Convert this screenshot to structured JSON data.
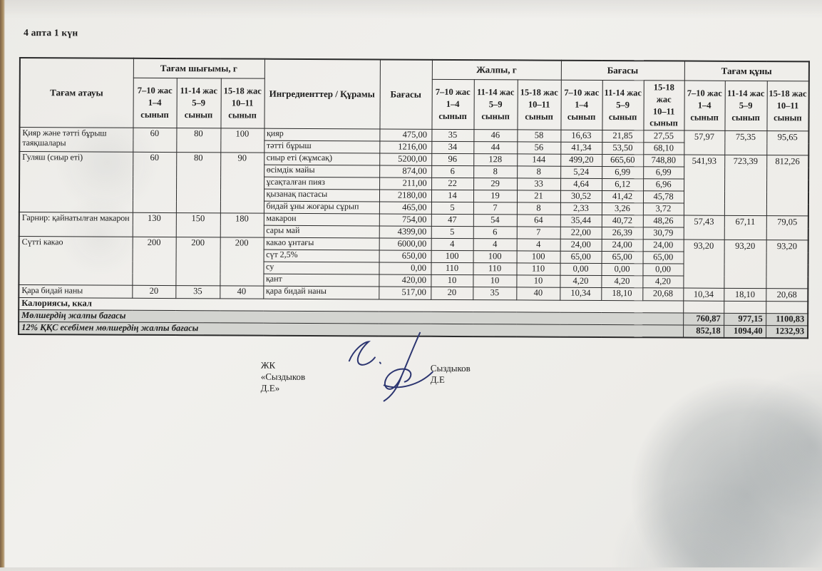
{
  "page": {
    "title": "4 апта 1 күн"
  },
  "colors": {
    "text_ink": "#1c1c1c",
    "table_line": "#2a2a2a",
    "total_row_bg": "#d3d4d0",
    "signature_ink": "#2c3570",
    "paper": "#efeeeb"
  },
  "table": {
    "headers": {
      "dish": "Тағам атауы",
      "output_group": "Тағам шығымы, г",
      "ingredients": "Ингредиенттер / Құрамы",
      "price": "Бағасы",
      "total_group": "Жалпы, г",
      "price_group": "Бағасы",
      "cost_group": "Тағам құны",
      "age_cols": [
        "7–10 жас\n1–4\nсынып",
        "11-14 жас\n5–9\nсынып",
        "15-18 жас\n10–11\nсынып"
      ]
    },
    "groups": [
      {
        "dish": "Қияр және тәтті бұрыш таяқшалары",
        "output": [
          "60",
          "80",
          "100"
        ],
        "cost": [
          "57,97",
          "75,35",
          "95,65"
        ],
        "ingredients": [
          {
            "name": "қияр",
            "price": "475,00",
            "total": [
              "35",
              "46",
              "58"
            ],
            "prices": [
              "16,63",
              "21,85",
              "27,55"
            ]
          },
          {
            "name": "тәтті бұрыш",
            "price": "1216,00",
            "total": [
              "34",
              "44",
              "56"
            ],
            "prices": [
              "41,34",
              "53,50",
              "68,10"
            ]
          }
        ]
      },
      {
        "dish": "Гуляш (сиыр еті)",
        "output": [
          "60",
          "80",
          "90"
        ],
        "cost": [
          "541,93",
          "723,39",
          "812,26"
        ],
        "ingredients": [
          {
            "name": "сиыр еті (жұмсақ)",
            "price": "5200,00",
            "total": [
              "96",
              "128",
              "144"
            ],
            "prices": [
              "499,20",
              "665,60",
              "748,80"
            ]
          },
          {
            "name": "өсімдік майы",
            "price": "874,00",
            "total": [
              "6",
              "8",
              "8"
            ],
            "prices": [
              "5,24",
              "6,99",
              "6,99"
            ]
          },
          {
            "name": "ұсақталған пияз",
            "price": "211,00",
            "total": [
              "22",
              "29",
              "33"
            ],
            "prices": [
              "4,64",
              "6,12",
              "6,96"
            ]
          },
          {
            "name": "қызанақ пастасы",
            "price": "2180,00",
            "total": [
              "14",
              "19",
              "21"
            ],
            "prices": [
              "30,52",
              "41,42",
              "45,78"
            ]
          },
          {
            "name": "бидай ұны жоғары сұрып",
            "price": "465,00",
            "total": [
              "5",
              "7",
              "8"
            ],
            "prices": [
              "2,33",
              "3,26",
              "3,72"
            ]
          }
        ]
      },
      {
        "dish": "Гарнир: қайнатылған макарон",
        "output": [
          "130",
          "150",
          "180"
        ],
        "cost": [
          "57,43",
          "67,11",
          "79,05"
        ],
        "ingredients": [
          {
            "name": "макарон",
            "price": "754,00",
            "total": [
              "47",
              "54",
              "64"
            ],
            "prices": [
              "35,44",
              "40,72",
              "48,26"
            ]
          },
          {
            "name": "сары май",
            "price": "4399,00",
            "total": [
              "5",
              "6",
              "7"
            ],
            "prices": [
              "22,00",
              "26,39",
              "30,79"
            ]
          }
        ]
      },
      {
        "dish": "Сүтті какао",
        "output": [
          "200",
          "200",
          "200"
        ],
        "cost": [
          "93,20",
          "93,20",
          "93,20"
        ],
        "ingredients": [
          {
            "name": "какао ұнтағы",
            "price": "6000,00",
            "total": [
              "4",
              "4",
              "4"
            ],
            "prices": [
              "24,00",
              "24,00",
              "24,00"
            ]
          },
          {
            "name": "сүт 2,5%",
            "price": "650,00",
            "total": [
              "100",
              "100",
              "100"
            ],
            "prices": [
              "65,00",
              "65,00",
              "65,00"
            ]
          },
          {
            "name": "су",
            "price": "0,00",
            "total": [
              "110",
              "110",
              "110"
            ],
            "prices": [
              "0,00",
              "0,00",
              "0,00"
            ]
          },
          {
            "name": "қант",
            "price": "420,00",
            "total": [
              "10",
              "10",
              "10"
            ],
            "prices": [
              "4,20",
              "4,20",
              "4,20"
            ]
          }
        ]
      },
      {
        "dish": "Қара бидай наны",
        "output": [
          "20",
          "35",
          "40"
        ],
        "cost": [
          "10,34",
          "18,10",
          "20,68"
        ],
        "ingredients": [
          {
            "name": "қара бидай наны",
            "price": "517,00",
            "total": [
              "20",
              "35",
              "40"
            ],
            "prices": [
              "10,34",
              "18,10",
              "20,68"
            ]
          }
        ]
      }
    ],
    "footer": {
      "calories_label": "Калориясы, ккал",
      "total_label": "Мөлшердің жалпы бағасы",
      "total_values": [
        "760,87",
        "977,15",
        "1100,83"
      ],
      "vat_label": "12% ҚҚС есебімен мөлшердің жалпы бағасы",
      "vat_values": [
        "852,18",
        "1094,40",
        "1232,93"
      ]
    }
  },
  "signature": {
    "company": "ЖК «Сыздыков Д.Е»",
    "name": "Сыздыков Д.Е"
  }
}
